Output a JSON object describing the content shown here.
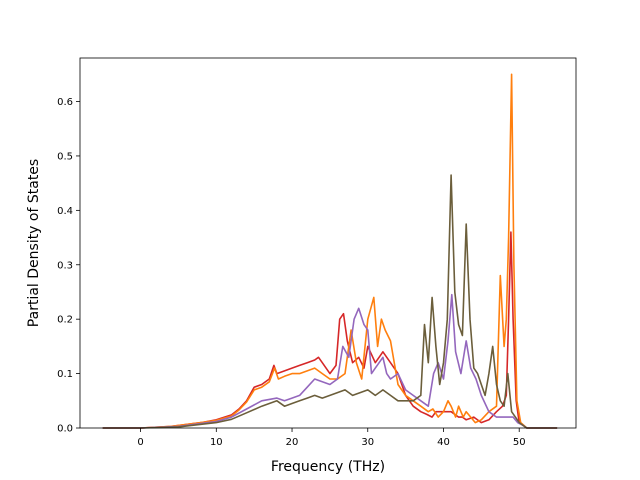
{
  "chart_data": {
    "type": "line",
    "title": "",
    "xlabel": "Frequency (THz)",
    "ylabel": "Partial Density of States",
    "xlim": [
      -8,
      57.5
    ],
    "ylim": [
      0,
      0.68
    ],
    "xticks": [
      0,
      10,
      20,
      30,
      40,
      50
    ],
    "yticks": [
      0.0,
      0.1,
      0.2,
      0.3,
      0.4,
      0.5,
      0.6
    ],
    "ytick_labels": [
      "0.0",
      "0.1",
      "0.2",
      "0.3",
      "0.4",
      "0.5",
      "0.6"
    ],
    "grid": false,
    "legend": "none",
    "series": [
      {
        "color": "#d62728",
        "x": [
          -5,
          0,
          4,
          8,
          10,
          12,
          13,
          14,
          15,
          16,
          17,
          17.6,
          18,
          19,
          20,
          21,
          22,
          23,
          23.5,
          24,
          25,
          25.8,
          26.3,
          26.8,
          27.3,
          28,
          28.8,
          29.5,
          30,
          31,
          31.5,
          32,
          33,
          34,
          35,
          36,
          37,
          37.8,
          38.5,
          39,
          40,
          41,
          41.5,
          42,
          42.5,
          43,
          44,
          45,
          46,
          47,
          47.8,
          48.3,
          48.6,
          48.9,
          49.2,
          49.6,
          50,
          51,
          55
        ],
        "y": [
          0.0,
          0.0,
          0.003,
          0.01,
          0.015,
          0.024,
          0.035,
          0.05,
          0.075,
          0.08,
          0.09,
          0.115,
          0.1,
          0.105,
          0.11,
          0.115,
          0.12,
          0.125,
          0.13,
          0.12,
          0.1,
          0.115,
          0.2,
          0.21,
          0.16,
          0.12,
          0.13,
          0.11,
          0.15,
          0.12,
          0.13,
          0.14,
          0.12,
          0.1,
          0.06,
          0.04,
          0.03,
          0.025,
          0.02,
          0.03,
          0.03,
          0.03,
          0.025,
          0.02,
          0.02,
          0.015,
          0.02,
          0.01,
          0.015,
          0.03,
          0.04,
          0.06,
          0.2,
          0.36,
          0.2,
          0.05,
          0.01,
          0.0,
          0.0
        ]
      },
      {
        "color": "#ff7f0e",
        "x": [
          -5,
          0,
          4,
          8,
          10,
          12,
          13,
          14,
          15,
          16,
          17,
          17.7,
          18.2,
          19,
          20,
          21,
          22,
          23,
          24,
          25,
          26,
          27,
          27.8,
          28.5,
          29.2,
          30,
          30.8,
          31.3,
          31.8,
          32.3,
          33,
          34,
          35,
          36,
          37,
          38,
          38.6,
          39.3,
          40,
          40.6,
          41,
          41.6,
          42,
          42.6,
          43,
          43.6,
          44.2,
          45,
          46,
          47,
          47.5,
          48,
          48.3,
          48.6,
          48.8,
          49.0,
          49.3,
          49.7,
          50.2,
          51,
          55
        ],
        "y": [
          0.0,
          0.0,
          0.003,
          0.01,
          0.014,
          0.022,
          0.033,
          0.048,
          0.07,
          0.075,
          0.085,
          0.11,
          0.09,
          0.095,
          0.1,
          0.1,
          0.105,
          0.11,
          0.1,
          0.09,
          0.09,
          0.1,
          0.18,
          0.12,
          0.09,
          0.2,
          0.24,
          0.15,
          0.2,
          0.18,
          0.16,
          0.08,
          0.06,
          0.05,
          0.04,
          0.03,
          0.035,
          0.02,
          0.03,
          0.05,
          0.04,
          0.02,
          0.04,
          0.02,
          0.03,
          0.02,
          0.01,
          0.015,
          0.03,
          0.04,
          0.28,
          0.15,
          0.2,
          0.35,
          0.5,
          0.65,
          0.3,
          0.05,
          0.01,
          0.0,
          0.0
        ]
      },
      {
        "color": "#9467bd",
        "x": [
          -5,
          0,
          5,
          10,
          12,
          14,
          16,
          18,
          19,
          20,
          21,
          22,
          23,
          24,
          25,
          26,
          26.7,
          27.5,
          28.2,
          28.8,
          29.5,
          30,
          30.5,
          31,
          31.5,
          32,
          32.5,
          33,
          34,
          35,
          36,
          37,
          38,
          38.7,
          39.3,
          40,
          40.6,
          41.1,
          41.6,
          42.3,
          43,
          43.6,
          44.3,
          45,
          46,
          47,
          48,
          48.7,
          49.2,
          49.8,
          50.5,
          51,
          55
        ],
        "y": [
          0.0,
          0.0,
          0.003,
          0.012,
          0.02,
          0.035,
          0.05,
          0.055,
          0.05,
          0.055,
          0.06,
          0.075,
          0.09,
          0.085,
          0.08,
          0.09,
          0.15,
          0.13,
          0.2,
          0.22,
          0.19,
          0.18,
          0.1,
          0.11,
          0.12,
          0.13,
          0.1,
          0.09,
          0.1,
          0.07,
          0.06,
          0.05,
          0.04,
          0.1,
          0.12,
          0.09,
          0.16,
          0.245,
          0.14,
          0.1,
          0.16,
          0.11,
          0.09,
          0.06,
          0.03,
          0.02,
          0.02,
          0.02,
          0.02,
          0.01,
          0.005,
          0.0,
          0.0
        ]
      },
      {
        "color": "#6b5e3b",
        "x": [
          -5,
          0,
          5,
          10,
          12,
          14,
          16,
          18,
          19,
          20,
          21,
          22,
          23,
          24,
          25,
          26,
          27,
          28,
          29,
          30,
          31,
          32,
          33,
          34,
          35,
          36,
          37,
          37.5,
          38,
          38.5,
          39,
          39.5,
          40,
          40.5,
          41,
          41.5,
          42,
          42.5,
          43,
          43.5,
          44,
          44.5,
          45,
          45.5,
          46,
          46.5,
          47,
          47.5,
          48,
          48.5,
          49,
          49.5,
          50,
          51,
          55
        ],
        "y": [
          0.0,
          0.0,
          0.002,
          0.01,
          0.016,
          0.028,
          0.04,
          0.05,
          0.04,
          0.045,
          0.05,
          0.055,
          0.06,
          0.055,
          0.06,
          0.065,
          0.07,
          0.06,
          0.065,
          0.07,
          0.06,
          0.07,
          0.06,
          0.05,
          0.05,
          0.05,
          0.06,
          0.19,
          0.12,
          0.24,
          0.15,
          0.08,
          0.12,
          0.2,
          0.465,
          0.25,
          0.19,
          0.17,
          0.375,
          0.2,
          0.11,
          0.1,
          0.08,
          0.06,
          0.1,
          0.15,
          0.08,
          0.05,
          0.04,
          0.1,
          0.03,
          0.02,
          0.01,
          0.0,
          0.0
        ]
      }
    ]
  }
}
